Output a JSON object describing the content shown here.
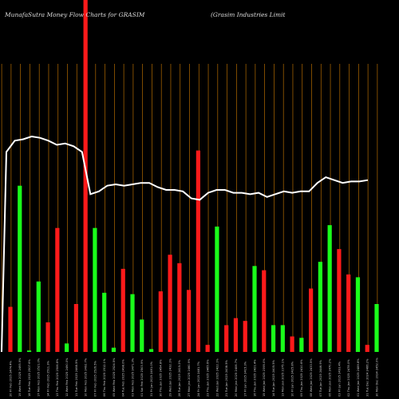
{
  "chart_data": {
    "type": "bar",
    "title_left": "MunafaSutra  Money Flow  Charts for GRASIM",
    "title_right": "(Grasim Industries Limit",
    "colors": {
      "background": "#000000",
      "up": "#1aff1a",
      "down": "#ff1a1a",
      "grid": "#b36b00",
      "line": "#ffffff"
    },
    "bars": [
      {
        "label": "20 Fri Feb 2025 2474.4%",
        "value": 0.16,
        "direction": "down"
      },
      {
        "label": "19 Wed Feb 2025 2495.9%",
        "value": 0.59,
        "direction": "up"
      },
      {
        "label": "18 Tue Feb 2025 2507.6%",
        "value": 0.005,
        "direction": "up"
      },
      {
        "label": "17 Mon Feb 2025 2521.0%",
        "value": 0.25,
        "direction": "up"
      },
      {
        "label": "14 Fri Feb 2025 2511.3%",
        "value": 0.105,
        "direction": "down"
      },
      {
        "label": "13 Thu Feb 2025 2506.8%",
        "value": 0.44,
        "direction": "down"
      },
      {
        "label": "12 Wed Feb 2025 2490.0%",
        "value": 0.03,
        "direction": "up"
      },
      {
        "label": "11 Tue Feb 2025 2468.5%",
        "value": 0.17,
        "direction": "down"
      },
      {
        "label": "10 Mon Feb 2025 2492.7%",
        "value": 1.3,
        "direction": "down"
      },
      {
        "label": "07 Fri Feb 2025 2526.5%",
        "value": 0.44,
        "direction": "up"
      },
      {
        "label": "06 Thu Feb 2025 2512.1%",
        "value": 0.21,
        "direction": "up"
      },
      {
        "label": "05 Wed Feb 2025 2524.5%",
        "value": 0.015,
        "direction": "up"
      },
      {
        "label": "04 Tue Feb 2025 2498.0%",
        "value": 0.295,
        "direction": "down"
      },
      {
        "label": "03 Mon Feb 2025 2471.3%",
        "value": 0.205,
        "direction": "up"
      },
      {
        "label": "01 Sat Feb 2025 2503.9%",
        "value": 0.115,
        "direction": "up"
      },
      {
        "label": "31 Fri Jan 2025 2491.0%",
        "value": 0.01,
        "direction": "up"
      },
      {
        "label": "30 Thu Jan 2025 2454.8%",
        "value": 0.215,
        "direction": "down"
      },
      {
        "label": "29 Wed Jan 2025 2432.1%",
        "value": 0.345,
        "direction": "down"
      },
      {
        "label": "28 Tue Jan 2025 2415.2%",
        "value": 0.315,
        "direction": "down"
      },
      {
        "label": "27 Mon Jan 2025 2460.9%",
        "value": 0.22,
        "direction": "down"
      },
      {
        "label": "24 Fri Jan 2025 2481.7%",
        "value": 0.715,
        "direction": "down"
      },
      {
        "label": "23 Thu Jan 2025 2465.6%",
        "value": 0.025,
        "direction": "down"
      },
      {
        "label": "22 Wed Jan 2025 2422.1%",
        "value": 0.445,
        "direction": "up"
      },
      {
        "label": "21 Tue Jan 2025 2438.5%",
        "value": 0.095,
        "direction": "down"
      },
      {
        "label": "20 Mon Jan 2025 2406.7%",
        "value": 0.12,
        "direction": "down"
      },
      {
        "label": "17 Fri Jan 2025 2415.3%",
        "value": 0.11,
        "direction": "down"
      },
      {
        "label": "16 Thu Jan 2025 2421.4%",
        "value": 0.305,
        "direction": "up"
      },
      {
        "label": "15 Wed Jan 2025 2395.0%",
        "value": 0.29,
        "direction": "down"
      },
      {
        "label": "14 Tue Jan 2025 2405.5%",
        "value": 0.095,
        "direction": "up"
      },
      {
        "label": "13 Mon Jan 2025 2375.1%",
        "value": 0.095,
        "direction": "up"
      },
      {
        "label": "10 Fri Jan 2025 2425.8%",
        "value": 0.055,
        "direction": "down"
      },
      {
        "label": "09 Thu Jan 2025 2410.6%",
        "value": 0.05,
        "direction": "up"
      },
      {
        "label": "08 Wed Jan 2025 2433.5%",
        "value": 0.225,
        "direction": "down"
      },
      {
        "label": "07 Tue Jan 2025 2446.9%",
        "value": 0.32,
        "direction": "up"
      },
      {
        "label": "06 Mon Jan 2025 2470.2%",
        "value": 0.45,
        "direction": "up"
      },
      {
        "label": "03 Fri Jan 2025 2493.4%",
        "value": 0.365,
        "direction": "down"
      },
      {
        "label": "02 Thu Jan 2025 2478.0%",
        "value": 0.275,
        "direction": "down"
      },
      {
        "label": "01 Wed Jan 2025 2489.8%",
        "value": 0.265,
        "direction": "up"
      },
      {
        "label": "31 Tue Dec 2024 2466.2%",
        "value": 0.025,
        "direction": "down"
      },
      {
        "label": "30 Mon Dec 2024 2452.0%",
        "value": 0.17,
        "direction": "up"
      }
    ],
    "line_values": [
      0.71,
      0.75,
      0.755,
      0.765,
      0.76,
      0.75,
      0.735,
      0.74,
      0.73,
      0.71,
      0.56,
      0.57,
      0.59,
      0.595,
      0.59,
      0.595,
      0.6,
      0.6,
      0.585,
      0.575,
      0.575,
      0.57,
      0.545,
      0.54,
      0.565,
      0.575,
      0.575,
      0.565,
      0.565,
      0.56,
      0.565,
      0.55,
      0.56,
      0.57,
      0.565,
      0.57,
      0.57,
      0.6,
      0.62,
      0.61,
      0.6,
      0.605,
      0.605,
      0.61
    ]
  }
}
